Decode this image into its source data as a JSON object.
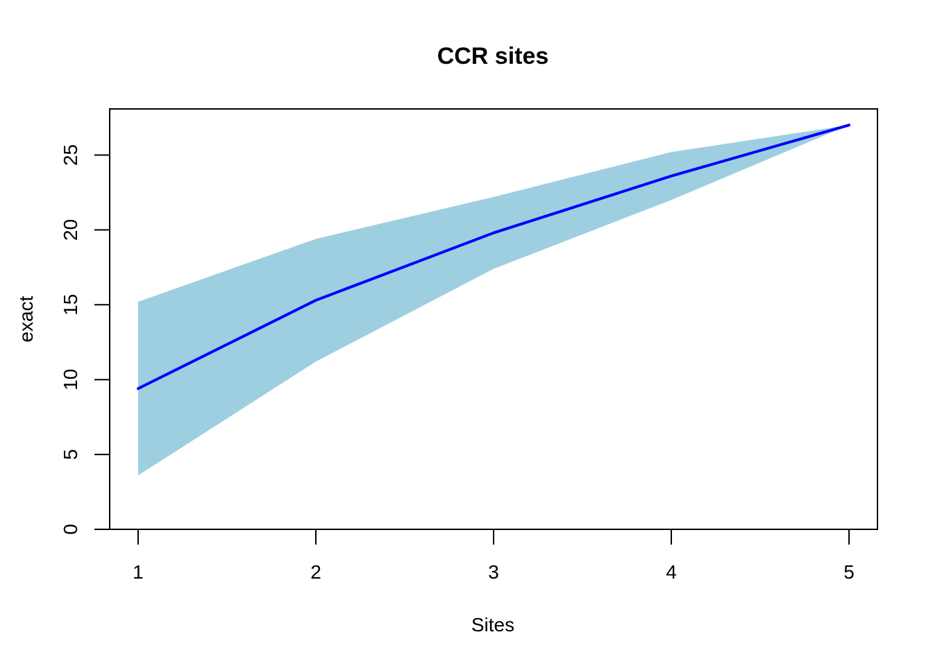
{
  "chart_data": {
    "type": "area",
    "title": "CCR sites",
    "xlabel": "Sites",
    "ylabel": "exact",
    "x": [
      1,
      2,
      3,
      4,
      5
    ],
    "xticks": [
      1,
      2,
      3,
      4,
      5
    ],
    "yticks": [
      0,
      5,
      10,
      15,
      20,
      25
    ],
    "xlim": [
      0.84,
      5.16
    ],
    "ylim": [
      0,
      28.08
    ],
    "grid": false,
    "series": [
      {
        "kind": "line",
        "values": [
          9.4,
          15.3,
          19.8,
          23.6,
          27.0
        ],
        "color": "#0000ff"
      },
      {
        "kind": "band",
        "lower": [
          3.6,
          11.2,
          17.4,
          22.0,
          27.0
        ],
        "upper": [
          15.2,
          19.4,
          22.2,
          25.2,
          27.0
        ],
        "color": "#9ecfe0"
      }
    ]
  }
}
